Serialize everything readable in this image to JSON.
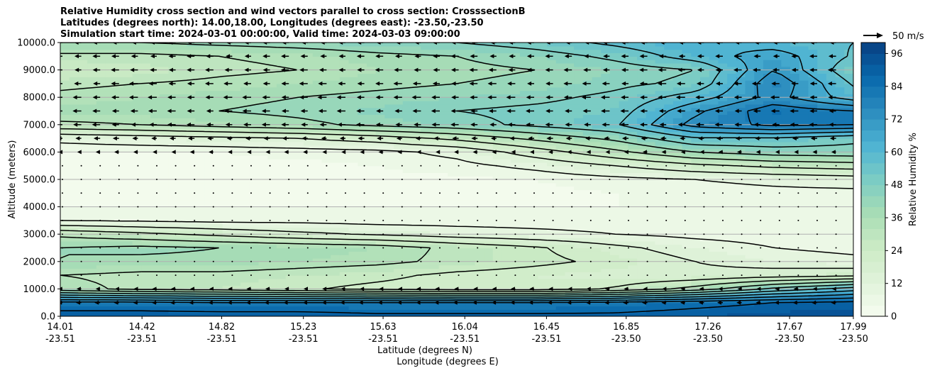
{
  "chart_data": {
    "type": "heatmap",
    "title_lines": [
      "Relative Humidity cross section and wind vectors parallel to cross section: CrosssectionB",
      "Latitudes (degrees north): 14.00,18.00, Longitudes (degrees east): -23.50,-23.50",
      "Simulation start time: 2024-03-01 00:00:00, Valid time: 2024-03-03 09:00:00"
    ],
    "xlabel": "Latitude (degrees N)",
    "xlabel2": "Longitude (degrees E)",
    "ylabel": "Altitude (meters)",
    "colorbar_label": "Relative Humidity %",
    "colorbar_ticks": [
      "0",
      "12",
      "24",
      "36",
      "48",
      "60",
      "72",
      "84",
      "96"
    ],
    "colorbar_range": [
      0,
      100
    ],
    "colorbar_step": 4,
    "contour_levels": [
      8,
      16,
      24,
      32,
      40,
      48,
      56,
      64,
      72,
      80,
      88
    ],
    "quiver_key": "50 m/s",
    "xlim": [
      14.01,
      17.99
    ],
    "ylim": [
      0,
      10000
    ],
    "grid": "horizontal",
    "x_ticks": [
      {
        "lat": "14.01",
        "lon": "-23.51"
      },
      {
        "lat": "14.42",
        "lon": "-23.51"
      },
      {
        "lat": "14.82",
        "lon": "-23.51"
      },
      {
        "lat": "15.23",
        "lon": "-23.51"
      },
      {
        "lat": "15.63",
        "lon": "-23.51"
      },
      {
        "lat": "16.04",
        "lon": "-23.51"
      },
      {
        "lat": "16.45",
        "lon": "-23.51"
      },
      {
        "lat": "16.85",
        "lon": "-23.50"
      },
      {
        "lat": "17.26",
        "lon": "-23.50"
      },
      {
        "lat": "17.67",
        "lon": "-23.50"
      },
      {
        "lat": "17.99",
        "lon": "-23.50"
      }
    ],
    "y_ticks": [
      "0.0",
      "1000.0",
      "2000.0",
      "3000.0",
      "4000.0",
      "5000.0",
      "6000.0",
      "7000.0",
      "8000.0",
      "9000.0",
      "10000.0"
    ],
    "grid_altitudes_step_m": 500,
    "rh_grid_rows_bottom_to_top": [
      [
        92,
        92,
        92,
        92,
        90,
        90,
        90,
        90,
        92,
        94,
        95
      ],
      [
        82,
        82,
        80,
        80,
        80,
        80,
        80,
        82,
        85,
        88,
        90
      ],
      [
        35,
        30,
        28,
        25,
        22,
        20,
        20,
        25,
        35,
        50,
        60
      ],
      [
        32,
        30,
        30,
        28,
        26,
        22,
        20,
        18,
        18,
        20,
        22
      ],
      [
        40,
        38,
        38,
        36,
        34,
        30,
        26,
        22,
        16,
        12,
        10
      ],
      [
        40,
        42,
        40,
        38,
        36,
        30,
        25,
        18,
        12,
        8,
        6
      ],
      [
        30,
        26,
        22,
        18,
        15,
        12,
        10,
        8,
        6,
        5,
        5
      ],
      [
        8,
        7,
        6,
        6,
        5,
        5,
        5,
        5,
        5,
        5,
        5
      ],
      [
        4,
        4,
        4,
        4,
        4,
        4,
        4,
        4,
        4,
        4,
        5
      ],
      [
        3,
        3,
        3,
        3,
        3,
        3,
        3,
        4,
        5,
        6,
        6
      ],
      [
        3,
        3,
        3,
        3,
        3,
        3,
        4,
        6,
        8,
        10,
        12
      ],
      [
        3,
        3,
        3,
        3,
        4,
        6,
        10,
        16,
        22,
        26,
        28
      ],
      [
        4,
        4,
        4,
        5,
        6,
        10,
        20,
        30,
        40,
        44,
        45
      ],
      [
        10,
        12,
        14,
        16,
        20,
        26,
        34,
        42,
        55,
        55,
        50
      ],
      [
        30,
        32,
        35,
        38,
        42,
        45,
        50,
        55,
        75,
        82,
        80
      ],
      [
        38,
        38,
        40,
        42,
        45,
        48,
        50,
        52,
        70,
        85,
        80
      ],
      [
        34,
        36,
        38,
        40,
        42,
        44,
        46,
        50,
        60,
        75,
        60
      ],
      [
        30,
        32,
        34,
        36,
        38,
        40,
        42,
        46,
        50,
        78,
        55
      ],
      [
        24,
        26,
        30,
        32,
        36,
        38,
        40,
        44,
        48,
        72,
        50
      ],
      [
        30,
        30,
        32,
        34,
        38,
        40,
        44,
        50,
        60,
        68,
        55
      ],
      [
        40,
        40,
        42,
        44,
        46,
        48,
        52,
        58,
        64,
        60,
        56
      ]
    ],
    "wind_u_ms_by_altitude_bottom_to_top": [
      -4,
      -8,
      -6,
      -3,
      -2,
      -1.5,
      -1,
      -1,
      -1,
      -1,
      -1,
      -2,
      -6,
      -10,
      -14,
      -15,
      -16,
      -15,
      -14,
      -13,
      -12
    ]
  }
}
